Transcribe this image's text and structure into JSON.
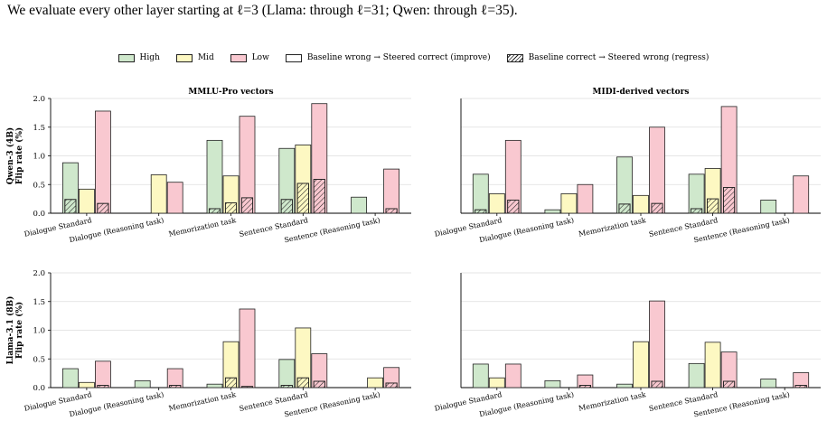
{
  "caption": "We evaluate every other layer starting at ℓ=3 (Llama: through ℓ=31; Qwen: through ℓ=35).",
  "legend": [
    {
      "label": "High",
      "color": "#cfe8cc",
      "hatch": false
    },
    {
      "label": "Mid",
      "color": "#fdf8c2",
      "hatch": false
    },
    {
      "label": "Low",
      "color": "#f9c8d0",
      "hatch": false
    },
    {
      "label": "Baseline wrong → Steered correct (improve)",
      "color": "#ffffff",
      "hatch": false
    },
    {
      "label": "Baseline correct → Steered wrong (regress)",
      "color": "#ffffff",
      "hatch": true
    }
  ],
  "chart_data": [
    {
      "type": "bar",
      "title": "MMLU-Pro vectors",
      "ylabel": "Qwen-3 (4B)\nFlip rate (%)",
      "ylim": [
        0,
        2.0
      ],
      "yticks": [
        "0.0",
        "0.5",
        "1.0",
        "1.5",
        "2.0"
      ],
      "categories": [
        "Dialogue Standard",
        "Dialogue (Reasoning task)",
        "Memorization task",
        "Sentence Standard",
        "Sentence (Reasoning task)"
      ],
      "series": [
        {
          "name": "High",
          "values": [
            0.88,
            0.0,
            1.27,
            1.13,
            0.28
          ],
          "regress": [
            0.24,
            0.0,
            0.08,
            0.24,
            0.0
          ]
        },
        {
          "name": "Mid",
          "values": [
            0.42,
            0.67,
            0.65,
            1.19,
            0.0
          ],
          "regress": [
            0.0,
            0.0,
            0.18,
            0.52,
            0.0
          ]
        },
        {
          "name": "Low",
          "values": [
            1.78,
            0.54,
            1.69,
            1.91,
            0.77
          ],
          "regress": [
            0.17,
            0.0,
            0.27,
            0.59,
            0.08
          ]
        }
      ]
    },
    {
      "type": "bar",
      "title": "MIDI-derived vectors",
      "ylabel": "",
      "ylim": [
        0,
        2.0
      ],
      "yticks": [],
      "categories": [
        "Dialogue Standard",
        "Dialogue (Reasoning task)",
        "Memorization task",
        "Sentence Standard",
        "Sentence (Reasoning task)"
      ],
      "series": [
        {
          "name": "High",
          "values": [
            0.68,
            0.06,
            0.98,
            0.68,
            0.23
          ],
          "regress": [
            0.06,
            0.0,
            0.16,
            0.08,
            0.0
          ]
        },
        {
          "name": "Mid",
          "values": [
            0.34,
            0.34,
            0.31,
            0.78,
            0.0
          ],
          "regress": [
            0.0,
            0.0,
            0.0,
            0.25,
            0.0
          ]
        },
        {
          "name": "Low",
          "values": [
            1.27,
            0.5,
            1.5,
            1.86,
            0.65
          ],
          "regress": [
            0.23,
            0.0,
            0.17,
            0.45,
            0.0
          ]
        }
      ]
    },
    {
      "type": "bar",
      "title": "",
      "ylabel": "Llama-3.1 (8B)\nFlip rate (%)",
      "ylim": [
        0,
        2.0
      ],
      "yticks": [
        "0.0",
        "0.5",
        "1.0",
        "1.5",
        "2.0"
      ],
      "categories": [
        "Dialogue Standard",
        "Dialogue (Reasoning task)",
        "Memorization task",
        "Sentence Standard",
        "Sentence (Reasoning task)"
      ],
      "series": [
        {
          "name": "High",
          "values": [
            0.33,
            0.12,
            0.06,
            0.49,
            0.0
          ],
          "regress": [
            0.0,
            0.0,
            0.0,
            0.04,
            0.0
          ]
        },
        {
          "name": "Mid",
          "values": [
            0.09,
            0.0,
            0.8,
            1.04,
            0.17
          ],
          "regress": [
            0.0,
            0.0,
            0.17,
            0.17,
            0.0
          ]
        },
        {
          "name": "Low",
          "values": [
            0.46,
            0.33,
            1.37,
            0.59,
            0.35
          ],
          "regress": [
            0.04,
            0.04,
            0.02,
            0.11,
            0.08
          ]
        }
      ]
    },
    {
      "type": "bar",
      "title": "",
      "ylabel": "",
      "ylim": [
        0,
        2.0
      ],
      "yticks": [],
      "categories": [
        "Dialogue Standard",
        "Dialogue (Reasoning task)",
        "Memorization task",
        "Sentence Standard",
        "Sentence (Reasoning task)"
      ],
      "series": [
        {
          "name": "High",
          "values": [
            0.41,
            0.12,
            0.06,
            0.42,
            0.15
          ],
          "regress": [
            0.0,
            0.0,
            0.0,
            0.0,
            0.0
          ]
        },
        {
          "name": "Mid",
          "values": [
            0.17,
            0.0,
            0.8,
            0.79,
            0.0
          ],
          "regress": [
            0.0,
            0.0,
            0.0,
            0.0,
            0.0
          ]
        },
        {
          "name": "Low",
          "values": [
            0.41,
            0.22,
            1.51,
            0.62,
            0.26
          ],
          "regress": [
            0.0,
            0.04,
            0.11,
            0.11,
            0.04
          ]
        }
      ]
    }
  ]
}
